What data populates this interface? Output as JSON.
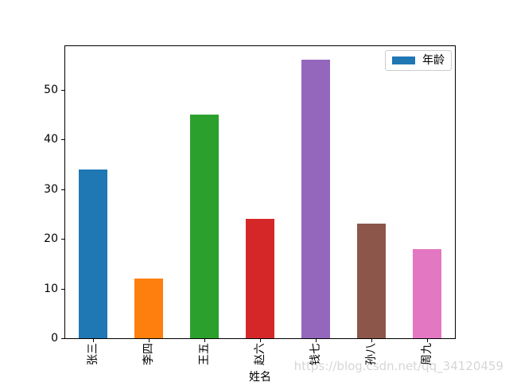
{
  "chart_data": {
    "type": "bar",
    "title": "",
    "categories": [
      "张三",
      "李四",
      "王五",
      "赵六",
      "钱七",
      "孙八",
      "周九"
    ],
    "series": [
      {
        "name": "年龄",
        "values": [
          34,
          12,
          45,
          24,
          56,
          23,
          18
        ]
      }
    ],
    "bar_colors": [
      "#1f77b4",
      "#ff7f0e",
      "#2ca02c",
      "#d62728",
      "#9467bd",
      "#8c564b",
      "#e377c2"
    ],
    "xlabel": "姓名",
    "ylabel": "",
    "ylim": [
      0,
      58.8
    ],
    "yticks": [
      0,
      10,
      20,
      30,
      40,
      50
    ],
    "xtick_rotation": 90,
    "grid": false,
    "legend": {
      "position": "upper right",
      "entries": [
        {
          "label": "年龄",
          "color": "#1f77b4"
        }
      ]
    }
  },
  "watermark": {
    "text": "https://blog.csdn.net/qq_34120459"
  }
}
